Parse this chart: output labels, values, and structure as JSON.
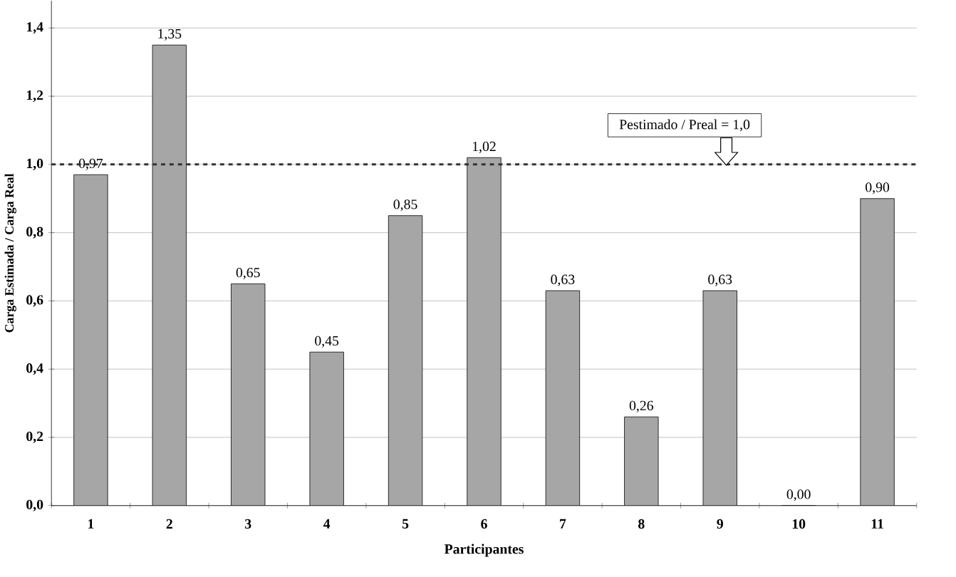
{
  "chart_data": {
    "type": "bar",
    "xlabel": "Participantes",
    "ylabel": "Carga Estimada / Carga Real",
    "categories": [
      "1",
      "2",
      "3",
      "4",
      "5",
      "6",
      "7",
      "8",
      "9",
      "10",
      "11"
    ],
    "values": [
      0.97,
      1.35,
      0.65,
      0.45,
      0.85,
      1.02,
      0.63,
      0.26,
      0.63,
      0.0,
      0.9
    ],
    "value_labels": [
      "0,97",
      "1,35",
      "0,65",
      "0,45",
      "0,85",
      "1,02",
      "0,63",
      "0,26",
      "0,63",
      "0,00",
      "0,90"
    ],
    "color": "#a6a6a6",
    "ylim": [
      0,
      1.48
    ],
    "yticks": [
      {
        "value": 0,
        "label": "0,0"
      },
      {
        "value": 0.2,
        "label": "0,2"
      },
      {
        "value": 0.4,
        "label": "0,4"
      },
      {
        "value": 0.6,
        "label": "0,6"
      },
      {
        "value": 0.8,
        "label": "0,8"
      },
      {
        "value": 1.0,
        "label": "1,0"
      },
      {
        "value": 1.2,
        "label": "1,2"
      },
      {
        "value": 1.4,
        "label": "1,4"
      }
    ],
    "grid": "y",
    "ref_lines": [
      {
        "axis": "y",
        "value": 1.0,
        "label": "Pestimado / Preal = 1,0",
        "line_style": "dashed"
      }
    ]
  }
}
